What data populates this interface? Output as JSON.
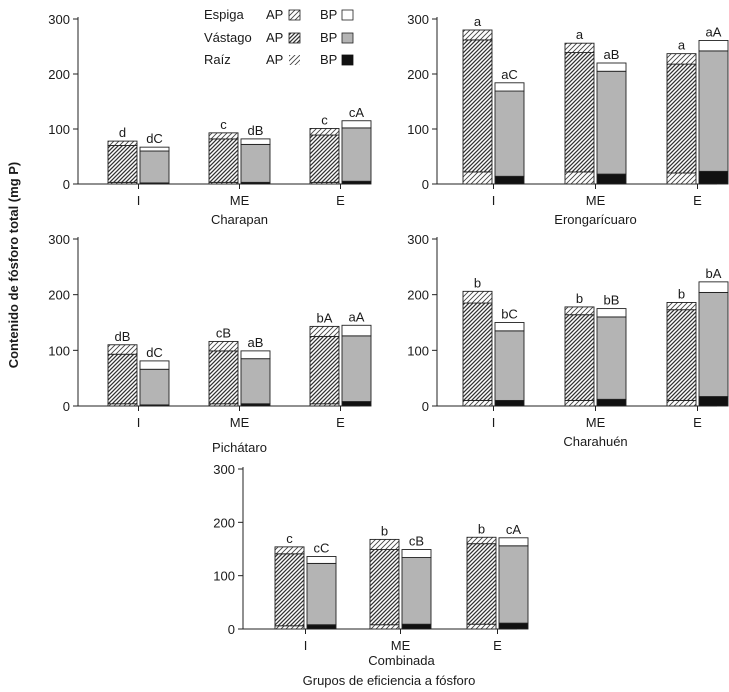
{
  "figure": {
    "ylabel": "Contenido de fósforo total (mg P)",
    "xlabel": "Grupos de eficiencia a fósforo",
    "legend": {
      "rows": [
        {
          "part": "Espiga",
          "ap": "AP",
          "bp": "BP"
        },
        {
          "part": "Vástago",
          "ap": "AP",
          "bp": "BP"
        },
        {
          "part": "Raíz",
          "ap": "AP",
          "bp": "BP"
        }
      ]
    }
  },
  "chart_data": [
    {
      "type": "bar",
      "stacked": true,
      "title": "Charapan",
      "categories": [
        "I",
        "ME",
        "E"
      ],
      "groups": [
        "AP",
        "BP"
      ],
      "stack_order": [
        "Raíz",
        "Vástago",
        "Espiga"
      ],
      "ylim": [
        0,
        300
      ],
      "yticks": [
        0,
        100,
        200,
        300
      ],
      "bars": [
        {
          "category": "I",
          "group": "AP",
          "raiz": 3,
          "vastago": 67,
          "espiga": 8,
          "label": "d"
        },
        {
          "category": "I",
          "group": "BP",
          "raiz": 2,
          "vastago": 58,
          "espiga": 7,
          "label": "dC"
        },
        {
          "category": "ME",
          "group": "AP",
          "raiz": 3,
          "vastago": 79,
          "espiga": 11,
          "label": "c"
        },
        {
          "category": "ME",
          "group": "BP",
          "raiz": 3,
          "vastago": 69,
          "espiga": 10,
          "label": "dB"
        },
        {
          "category": "E",
          "group": "AP",
          "raiz": 3,
          "vastago": 86,
          "espiga": 12,
          "label": "c"
        },
        {
          "category": "E",
          "group": "BP",
          "raiz": 5,
          "vastago": 97,
          "espiga": 13,
          "label": "cA"
        }
      ]
    },
    {
      "type": "bar",
      "stacked": true,
      "title": "Erongarícuaro",
      "categories": [
        "I",
        "ME",
        "E"
      ],
      "groups": [
        "AP",
        "BP"
      ],
      "stack_order": [
        "Raíz",
        "Vástago",
        "Espiga"
      ],
      "ylim": [
        0,
        300
      ],
      "yticks": [
        0,
        100,
        200,
        300
      ],
      "bars": [
        {
          "category": "I",
          "group": "AP",
          "raiz": 22,
          "vastago": 240,
          "espiga": 18,
          "label": "a"
        },
        {
          "category": "I",
          "group": "BP",
          "raiz": 14,
          "vastago": 155,
          "espiga": 15,
          "label": "aC"
        },
        {
          "category": "ME",
          "group": "AP",
          "raiz": 22,
          "vastago": 217,
          "espiga": 17,
          "label": "a"
        },
        {
          "category": "ME",
          "group": "BP",
          "raiz": 18,
          "vastago": 187,
          "espiga": 15,
          "label": "aB"
        },
        {
          "category": "E",
          "group": "AP",
          "raiz": 20,
          "vastago": 198,
          "espiga": 19,
          "label": "a"
        },
        {
          "category": "E",
          "group": "BP",
          "raiz": 23,
          "vastago": 219,
          "espiga": 19,
          "label": "aA"
        }
      ]
    },
    {
      "type": "bar",
      "stacked": true,
      "title": "Pichátaro",
      "categories": [
        "I",
        "ME",
        "E"
      ],
      "groups": [
        "AP",
        "BP"
      ],
      "stack_order": [
        "Raíz",
        "Vástago",
        "Espiga"
      ],
      "ylim": [
        0,
        300
      ],
      "yticks": [
        0,
        100,
        200,
        300
      ],
      "bars": [
        {
          "category": "I",
          "group": "AP",
          "raiz": 4,
          "vastago": 89,
          "espiga": 17,
          "label": "dB"
        },
        {
          "category": "I",
          "group": "BP",
          "raiz": 2,
          "vastago": 64,
          "espiga": 15,
          "label": "dC"
        },
        {
          "category": "ME",
          "group": "AP",
          "raiz": 4,
          "vastago": 95,
          "espiga": 17,
          "label": "cB"
        },
        {
          "category": "ME",
          "group": "BP",
          "raiz": 4,
          "vastago": 81,
          "espiga": 14,
          "label": "aB"
        },
        {
          "category": "E",
          "group": "AP",
          "raiz": 4,
          "vastago": 121,
          "espiga": 18,
          "label": "bA"
        },
        {
          "category": "E",
          "group": "BP",
          "raiz": 8,
          "vastago": 118,
          "espiga": 19,
          "label": "aA"
        }
      ]
    },
    {
      "type": "bar",
      "stacked": true,
      "title": "Charahuén",
      "categories": [
        "I",
        "ME",
        "E"
      ],
      "groups": [
        "AP",
        "BP"
      ],
      "stack_order": [
        "Raíz",
        "Vástago",
        "Espiga"
      ],
      "ylim": [
        0,
        300
      ],
      "yticks": [
        0,
        100,
        200,
        300
      ],
      "bars": [
        {
          "category": "I",
          "group": "AP",
          "raiz": 10,
          "vastago": 175,
          "espiga": 21,
          "label": "b"
        },
        {
          "category": "I",
          "group": "BP",
          "raiz": 10,
          "vastago": 125,
          "espiga": 15,
          "label": "bC"
        },
        {
          "category": "ME",
          "group": "AP",
          "raiz": 10,
          "vastago": 154,
          "espiga": 14,
          "label": "b"
        },
        {
          "category": "ME",
          "group": "BP",
          "raiz": 12,
          "vastago": 148,
          "espiga": 15,
          "label": "bB"
        },
        {
          "category": "E",
          "group": "AP",
          "raiz": 10,
          "vastago": 163,
          "espiga": 13,
          "label": "b"
        },
        {
          "category": "E",
          "group": "BP",
          "raiz": 17,
          "vastago": 187,
          "espiga": 19,
          "label": "bA"
        }
      ]
    },
    {
      "type": "bar",
      "stacked": true,
      "title": "Combinada",
      "categories": [
        "I",
        "ME",
        "E"
      ],
      "groups": [
        "AP",
        "BP"
      ],
      "stack_order": [
        "Raíz",
        "Vástago",
        "Espiga"
      ],
      "ylim": [
        0,
        300
      ],
      "yticks": [
        0,
        100,
        200,
        300
      ],
      "bars": [
        {
          "category": "I",
          "group": "AP",
          "raiz": 6,
          "vastago": 135,
          "espiga": 13,
          "label": "c"
        },
        {
          "category": "I",
          "group": "BP",
          "raiz": 8,
          "vastago": 115,
          "espiga": 13,
          "label": "cC"
        },
        {
          "category": "ME",
          "group": "AP",
          "raiz": 8,
          "vastago": 141,
          "espiga": 19,
          "label": "b"
        },
        {
          "category": "ME",
          "group": "BP",
          "raiz": 9,
          "vastago": 125,
          "espiga": 15,
          "label": "cB"
        },
        {
          "category": "E",
          "group": "AP",
          "raiz": 9,
          "vastago": 151,
          "espiga": 12,
          "label": "b"
        },
        {
          "category": "E",
          "group": "BP",
          "raiz": 11,
          "vastago": 145,
          "espiga": 15,
          "label": "cA"
        }
      ]
    }
  ]
}
